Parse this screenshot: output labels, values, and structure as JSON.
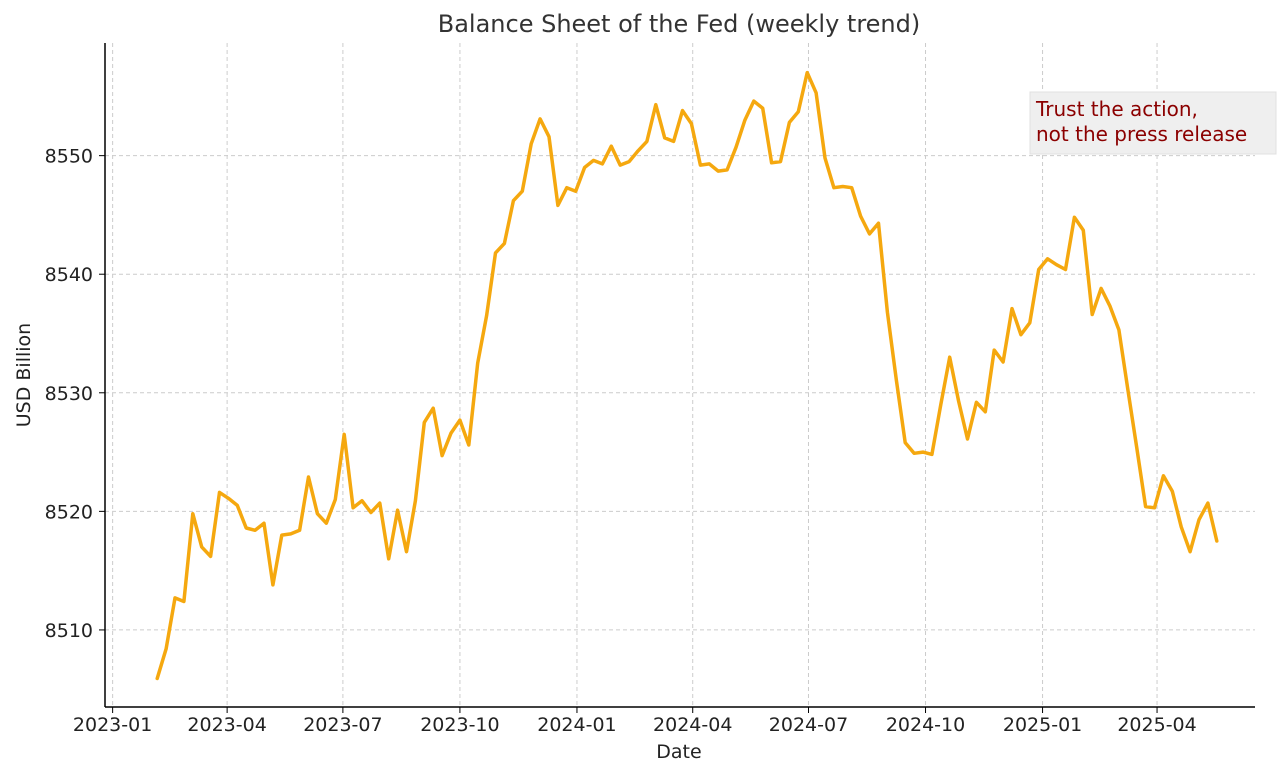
{
  "chart_data": {
    "type": "line",
    "title": "Balance Sheet of the Fed (weekly trend)",
    "xlabel": "Date",
    "ylabel": "USD Billion",
    "xlim": [
      "2023-01",
      "2025-06"
    ],
    "ylim": [
      8503.5,
      8559.5
    ],
    "x_ticks": [
      "2023-01",
      "2023-04",
      "2023-07",
      "2023-10",
      "2024-01",
      "2024-04",
      "2024-07",
      "2024-10",
      "2025-01",
      "2025-04"
    ],
    "y_ticks": [
      8510,
      8520,
      8530,
      8540,
      8550
    ],
    "grid": true,
    "line_color": "#f5a80f",
    "annotation": {
      "lines": [
        "Trust the action,",
        "not the press release"
      ],
      "color": "#8b0000",
      "background": "#efefef",
      "placement": "top-right"
    },
    "series": [
      {
        "x": [
          "2023-02-05",
          "2023-02-12",
          "2023-02-19",
          "2023-02-26",
          "2023-03-05",
          "2023-03-12",
          "2023-03-19",
          "2023-03-26",
          "2023-04-02",
          "2023-04-09",
          "2023-04-16",
          "2023-04-23",
          "2023-04-30",
          "2023-05-07",
          "2023-05-14",
          "2023-05-21",
          "2023-05-28",
          "2023-06-04",
          "2023-06-11",
          "2023-06-18",
          "2023-06-25",
          "2023-07-02",
          "2023-07-09",
          "2023-07-16",
          "2023-07-23",
          "2023-07-30",
          "2023-08-06",
          "2023-08-13",
          "2023-08-20",
          "2023-08-27",
          "2023-09-03",
          "2023-09-10",
          "2023-09-17",
          "2023-09-24",
          "2023-10-01",
          "2023-10-08",
          "2023-10-15",
          "2023-10-22",
          "2023-10-29",
          "2023-11-05",
          "2023-11-12",
          "2023-11-19",
          "2023-11-26",
          "2023-12-03",
          "2023-12-10",
          "2023-12-17",
          "2023-12-24",
          "2023-12-31",
          "2024-01-07",
          "2024-01-14",
          "2024-01-21",
          "2024-01-28",
          "2024-02-04",
          "2024-02-11",
          "2024-02-18",
          "2024-02-25",
          "2024-03-03",
          "2024-03-10",
          "2024-03-17",
          "2024-03-24",
          "2024-03-31",
          "2024-04-07",
          "2024-04-14",
          "2024-04-21",
          "2024-04-28",
          "2024-05-05",
          "2024-05-12",
          "2024-05-19",
          "2024-05-26",
          "2024-06-02",
          "2024-06-09",
          "2024-06-16",
          "2024-06-23",
          "2024-06-30",
          "2024-07-07",
          "2024-07-14",
          "2024-07-21",
          "2024-07-28",
          "2024-08-04",
          "2024-08-11",
          "2024-08-18",
          "2024-08-25",
          "2024-09-01",
          "2024-09-08",
          "2024-09-15",
          "2024-09-22",
          "2024-09-29",
          "2024-10-06",
          "2024-10-13",
          "2024-10-20",
          "2024-10-27",
          "2024-11-03",
          "2024-11-10",
          "2024-11-17",
          "2024-11-24",
          "2024-12-01",
          "2024-12-08",
          "2024-12-15",
          "2024-12-22",
          "2024-12-29",
          "2025-01-05",
          "2025-01-12",
          "2025-01-19",
          "2025-01-26",
          "2025-02-02",
          "2025-02-09",
          "2025-02-16",
          "2025-02-23",
          "2025-03-02",
          "2025-03-09",
          "2025-03-16",
          "2025-03-23",
          "2025-03-30",
          "2025-04-06",
          "2025-04-13",
          "2025-04-20",
          "2025-04-27",
          "2025-05-04",
          "2025-05-11",
          "2025-05-18"
        ],
        "values": [
          8505.9,
          8508.4,
          8512.7,
          8512.4,
          8519.8,
          8517.0,
          8516.2,
          8521.6,
          8521.1,
          8520.5,
          8518.6,
          8518.4,
          8519.0,
          8513.8,
          8518.0,
          8518.1,
          8518.4,
          8522.9,
          8519.8,
          8519.0,
          8521.0,
          8526.5,
          8520.3,
          8520.9,
          8519.9,
          8520.7,
          8516.0,
          8520.1,
          8516.6,
          8520.9,
          8527.5,
          8528.7,
          8524.7,
          8526.6,
          8527.7,
          8525.6,
          8532.5,
          8536.5,
          8541.8,
          8542.6,
          8546.2,
          8547.0,
          8551.0,
          8553.1,
          8551.6,
          8545.8,
          8547.3,
          8547.0,
          8549.0,
          8549.6,
          8549.3,
          8550.8,
          8549.2,
          8549.5,
          8550.4,
          8551.2,
          8554.3,
          8551.5,
          8551.2,
          8553.8,
          8552.7,
          8549.2,
          8549.3,
          8548.7,
          8548.8,
          8550.7,
          8553.0,
          8554.6,
          8554.0,
          8549.4,
          8549.5,
          8552.8,
          8553.7,
          8557.0,
          8555.3,
          8549.8,
          8547.3,
          8547.4,
          8547.3,
          8544.9,
          8543.4,
          8544.3,
          8536.8,
          8531.1,
          8525.8,
          8524.9,
          8525.0,
          8524.8,
          8529.0,
          8533.0,
          8529.3,
          8526.1,
          8529.2,
          8528.4,
          8533.6,
          8532.6,
          8537.1,
          8534.9,
          8535.9,
          8540.4,
          8541.3,
          8540.8,
          8540.4,
          8544.8,
          8543.7,
          8536.6,
          8538.8,
          8537.3,
          8535.3,
          8530.3,
          8525.4,
          8520.4,
          8520.3,
          8523.0,
          8521.7,
          8518.7,
          8516.6,
          8519.3,
          8520.7,
          8517.5
        ]
      }
    ]
  }
}
